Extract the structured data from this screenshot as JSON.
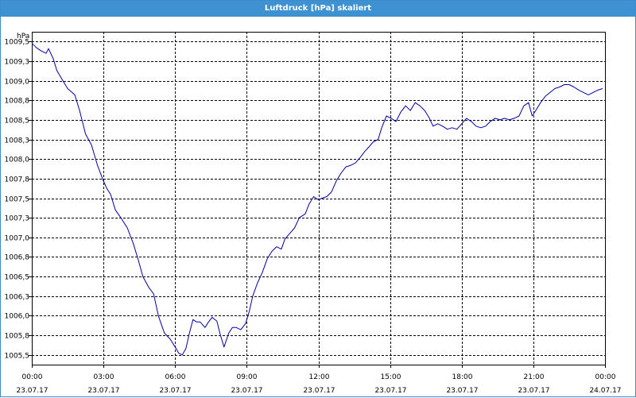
{
  "window": {
    "title": "Luftdruck [hPa] skaliert"
  },
  "chart_data": {
    "type": "line",
    "title": "Luftdruck [hPa] skaliert",
    "ylabel": "hPa",
    "xlabel": "",
    "ylim": [
      1005.375,
      1009.625
    ],
    "xlim": [
      0,
      24
    ],
    "grid": true,
    "y_ticks": [
      {
        "value": 1009.5,
        "label": "1009,5"
      },
      {
        "value": 1009.25,
        "label": "1009,3"
      },
      {
        "value": 1009.0,
        "label": "1009,0"
      },
      {
        "value": 1008.75,
        "label": "1008,8"
      },
      {
        "value": 1008.5,
        "label": "1008,5"
      },
      {
        "value": 1008.25,
        "label": "1008,3"
      },
      {
        "value": 1008.0,
        "label": "1008,0"
      },
      {
        "value": 1007.75,
        "label": "1007,8"
      },
      {
        "value": 1007.5,
        "label": "1007,5"
      },
      {
        "value": 1007.25,
        "label": "1007,3"
      },
      {
        "value": 1007.0,
        "label": "1007,0"
      },
      {
        "value": 1006.75,
        "label": "1006,8"
      },
      {
        "value": 1006.5,
        "label": "1006,5"
      },
      {
        "value": 1006.25,
        "label": "1006,3"
      },
      {
        "value": 1006.0,
        "label": "1006,0"
      },
      {
        "value": 1005.75,
        "label": "1005,8"
      },
      {
        "value": 1005.5,
        "label": "1005,5"
      }
    ],
    "x_ticks": [
      {
        "value": 0,
        "time": "00:00",
        "date": "23.07.17"
      },
      {
        "value": 3,
        "time": "03:00",
        "date": "23.07.17"
      },
      {
        "value": 6,
        "time": "06:00",
        "date": "23.07.17"
      },
      {
        "value": 9,
        "time": "09:00",
        "date": "23.07.17"
      },
      {
        "value": 12,
        "time": "12:00",
        "date": "23.07.17"
      },
      {
        "value": 15,
        "time": "15:00",
        "date": "23.07.17"
      },
      {
        "value": 18,
        "time": "18:00",
        "date": "23.07.17"
      },
      {
        "value": 21,
        "time": "21:00",
        "date": "23.07.17"
      },
      {
        "value": 24,
        "time": "00:00",
        "date": "24.07.17"
      }
    ],
    "series": [
      {
        "color": "#0000aa",
        "x": [
          0.0,
          0.2,
          0.4,
          0.6,
          0.7,
          0.9,
          1.05,
          1.3,
          1.5,
          1.8,
          2.0,
          2.25,
          2.5,
          2.75,
          3.0,
          3.15,
          3.3,
          3.5,
          3.75,
          4.0,
          4.25,
          4.45,
          4.65,
          4.9,
          5.1,
          5.3,
          5.55,
          5.8,
          6.0,
          6.15,
          6.3,
          6.45,
          6.6,
          6.75,
          6.9,
          7.05,
          7.25,
          7.4,
          7.55,
          7.75,
          7.9,
          8.05,
          8.25,
          8.4,
          8.55,
          8.75,
          8.95,
          9.1,
          9.25,
          9.45,
          9.65,
          9.85,
          10.05,
          10.25,
          10.45,
          10.6,
          10.8,
          11.0,
          11.2,
          11.45,
          11.6,
          11.8,
          12.0,
          12.15,
          12.35,
          12.55,
          12.75,
          12.95,
          13.15,
          13.35,
          13.55,
          13.75,
          13.95,
          14.1,
          14.3,
          14.5,
          14.65,
          14.85,
          15.05,
          15.25,
          15.45,
          15.65,
          15.85,
          16.05,
          16.25,
          16.45,
          16.65,
          16.8,
          17.0,
          17.2,
          17.4,
          17.6,
          17.8,
          18.0,
          18.2,
          18.4,
          18.6,
          18.8,
          19.0,
          19.2,
          19.4,
          19.6,
          19.8,
          20.0,
          20.2,
          20.4,
          20.6,
          20.8,
          20.95,
          21.1,
          21.3,
          21.5,
          21.7,
          21.9,
          22.1,
          22.3,
          22.5,
          22.7,
          22.9,
          23.1,
          23.3,
          23.5,
          23.7,
          23.9
        ],
        "y": [
          1009.48,
          1009.42,
          1009.38,
          1009.35,
          1009.41,
          1009.28,
          1009.13,
          1009.0,
          1008.9,
          1008.82,
          1008.62,
          1008.32,
          1008.18,
          1007.92,
          1007.72,
          1007.62,
          1007.55,
          1007.35,
          1007.24,
          1007.12,
          1006.92,
          1006.72,
          1006.5,
          1006.36,
          1006.28,
          1006.0,
          1005.78,
          1005.7,
          1005.6,
          1005.52,
          1005.5,
          1005.58,
          1005.78,
          1005.95,
          1005.92,
          1005.92,
          1005.85,
          1005.92,
          1005.98,
          1005.93,
          1005.75,
          1005.6,
          1005.78,
          1005.85,
          1005.85,
          1005.82,
          1005.9,
          1006.05,
          1006.25,
          1006.42,
          1006.55,
          1006.72,
          1006.82,
          1006.88,
          1006.85,
          1006.98,
          1007.05,
          1007.12,
          1007.25,
          1007.3,
          1007.42,
          1007.52,
          1007.48,
          1007.5,
          1007.52,
          1007.58,
          1007.72,
          1007.82,
          1007.9,
          1007.92,
          1007.95,
          1008.02,
          1008.1,
          1008.15,
          1008.22,
          1008.25,
          1008.4,
          1008.55,
          1008.52,
          1008.48,
          1008.6,
          1008.68,
          1008.62,
          1008.72,
          1008.68,
          1008.62,
          1008.52,
          1008.42,
          1008.45,
          1008.42,
          1008.38,
          1008.4,
          1008.38,
          1008.45,
          1008.52,
          1008.48,
          1008.42,
          1008.4,
          1008.42,
          1008.48,
          1008.52,
          1008.5,
          1008.52,
          1008.5,
          1008.52,
          1008.55,
          1008.68,
          1008.72,
          1008.55,
          1008.62,
          1008.72,
          1008.8,
          1008.85,
          1008.9,
          1008.92,
          1008.95,
          1008.95,
          1008.92,
          1008.88,
          1008.85,
          1008.82,
          1008.85,
          1008.88,
          1008.9
        ]
      }
    ]
  }
}
